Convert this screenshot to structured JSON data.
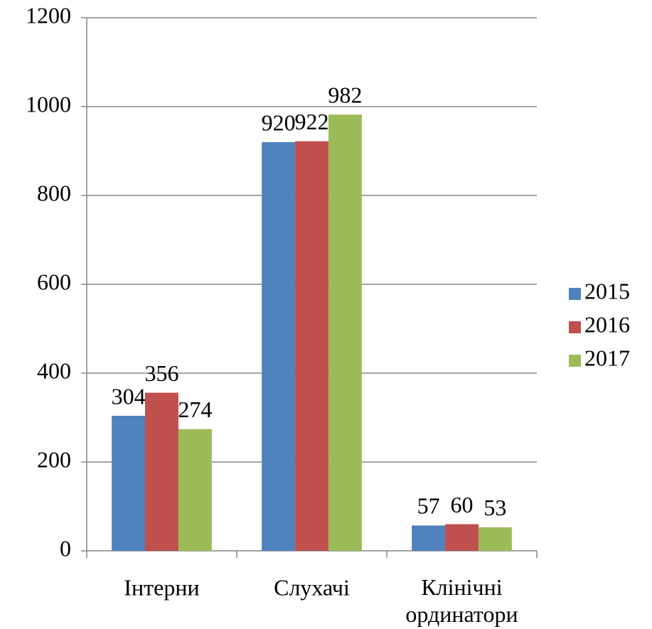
{
  "chart_data": {
    "type": "bar",
    "categories": [
      "Інтерни",
      "Слухачі",
      "Клінічні ординатори"
    ],
    "series": [
      {
        "name": "2015",
        "color": "#4f81bd",
        "values": [
          304,
          920,
          57
        ]
      },
      {
        "name": "2016",
        "color": "#c0504d",
        "values": [
          356,
          922,
          60
        ]
      },
      {
        "name": "2017",
        "color": "#9bbb59",
        "values": [
          274,
          982,
          53
        ]
      }
    ],
    "ylim": [
      0,
      1200
    ],
    "yticks": [
      0,
      200,
      400,
      600,
      800,
      1000,
      1200
    ],
    "grid": true,
    "legend": "right"
  }
}
